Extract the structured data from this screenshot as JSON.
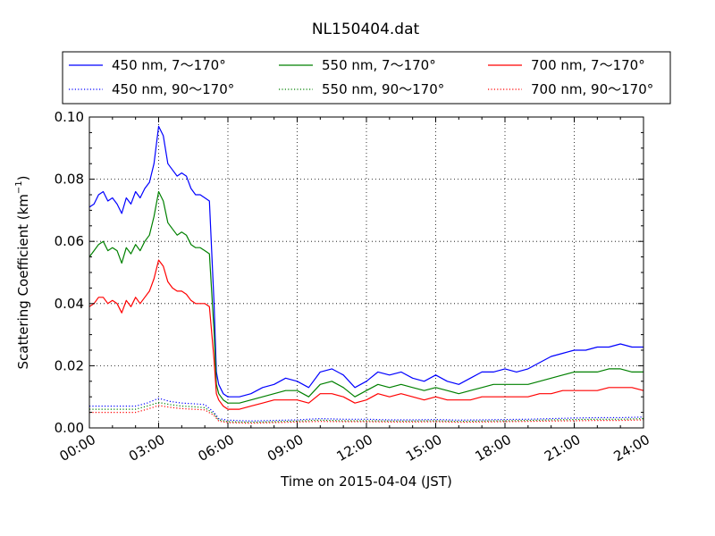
{
  "chart_data": {
    "type": "line",
    "title": "NL150404.dat",
    "xlabel": "Time on 2015-04-04 (JST)",
    "ylabel": "Scattering Coefficient (km",
    "ylabel_sup": "−1",
    "ylabel_close": ")",
    "xlim": [
      0,
      24
    ],
    "ylim": [
      0,
      0.1
    ],
    "grid": true,
    "legend_position": "top",
    "x_ticks": [
      {
        "value": 0,
        "label": "00:00"
      },
      {
        "value": 3,
        "label": "03:00"
      },
      {
        "value": 6,
        "label": "06:00"
      },
      {
        "value": 9,
        "label": "09:00"
      },
      {
        "value": 12,
        "label": "12:00"
      },
      {
        "value": 15,
        "label": "15:00"
      },
      {
        "value": 18,
        "label": "18:00"
      },
      {
        "value": 21,
        "label": "21:00"
      },
      {
        "value": 24,
        "label": "24:00"
      }
    ],
    "y_ticks": [
      {
        "value": 0,
        "label": "0.00"
      },
      {
        "value": 0.02,
        "label": "0.02"
      },
      {
        "value": 0.04,
        "label": "0.04"
      },
      {
        "value": 0.06,
        "label": "0.06"
      },
      {
        "value": 0.08,
        "label": "0.08"
      },
      {
        "value": 0.1,
        "label": "0.10"
      }
    ],
    "series": [
      {
        "name": "450 nm, 7～170°",
        "color": "#0000ff",
        "dash": "solid",
        "x": [
          0,
          0.2,
          0.4,
          0.6,
          0.8,
          1.0,
          1.2,
          1.4,
          1.6,
          1.8,
          2.0,
          2.2,
          2.4,
          2.6,
          2.8,
          3.0,
          3.2,
          3.4,
          3.6,
          3.8,
          4.0,
          4.2,
          4.4,
          4.6,
          4.8,
          5.0,
          5.2,
          5.4,
          5.5,
          5.6,
          5.8,
          6.0,
          6.5,
          7.0,
          7.5,
          8.0,
          8.5,
          9.0,
          9.5,
          10.0,
          10.5,
          11.0,
          11.5,
          12.0,
          12.5,
          13.0,
          13.5,
          14.0,
          14.5,
          15.0,
          15.5,
          16.0,
          16.5,
          17.0,
          17.5,
          18.0,
          18.5,
          19.0,
          19.5,
          20.0,
          20.5,
          21.0,
          21.5,
          22.0,
          22.5,
          23.0,
          23.5,
          24.0
        ],
        "y": [
          0.071,
          0.072,
          0.075,
          0.076,
          0.073,
          0.074,
          0.072,
          0.069,
          0.074,
          0.072,
          0.076,
          0.074,
          0.077,
          0.079,
          0.085,
          0.097,
          0.094,
          0.085,
          0.083,
          0.081,
          0.082,
          0.081,
          0.077,
          0.075,
          0.075,
          0.074,
          0.073,
          0.04,
          0.018,
          0.014,
          0.011,
          0.01,
          0.01,
          0.011,
          0.013,
          0.014,
          0.016,
          0.015,
          0.013,
          0.018,
          0.019,
          0.017,
          0.013,
          0.015,
          0.018,
          0.017,
          0.018,
          0.016,
          0.015,
          0.017,
          0.015,
          0.014,
          0.016,
          0.018,
          0.018,
          0.019,
          0.018,
          0.019,
          0.021,
          0.023,
          0.024,
          0.025,
          0.025,
          0.026,
          0.026,
          0.027,
          0.026,
          0.026
        ]
      },
      {
        "name": "550 nm, 7～170°",
        "color": "#008000",
        "dash": "solid",
        "x": [
          0,
          0.2,
          0.4,
          0.6,
          0.8,
          1.0,
          1.2,
          1.4,
          1.6,
          1.8,
          2.0,
          2.2,
          2.4,
          2.6,
          2.8,
          3.0,
          3.2,
          3.4,
          3.6,
          3.8,
          4.0,
          4.2,
          4.4,
          4.6,
          4.8,
          5.0,
          5.2,
          5.4,
          5.5,
          5.6,
          5.8,
          6.0,
          6.5,
          7.0,
          7.5,
          8.0,
          8.5,
          9.0,
          9.5,
          10.0,
          10.5,
          11.0,
          11.5,
          12.0,
          12.5,
          13.0,
          13.5,
          14.0,
          14.5,
          15.0,
          15.5,
          16.0,
          16.5,
          17.0,
          17.5,
          18.0,
          18.5,
          19.0,
          19.5,
          20.0,
          20.5,
          21.0,
          21.5,
          22.0,
          22.5,
          23.0,
          23.5,
          24.0
        ],
        "y": [
          0.055,
          0.057,
          0.059,
          0.06,
          0.057,
          0.058,
          0.057,
          0.053,
          0.058,
          0.056,
          0.059,
          0.057,
          0.06,
          0.062,
          0.068,
          0.076,
          0.073,
          0.066,
          0.064,
          0.062,
          0.063,
          0.062,
          0.059,
          0.058,
          0.058,
          0.057,
          0.056,
          0.031,
          0.014,
          0.011,
          0.009,
          0.008,
          0.008,
          0.009,
          0.01,
          0.011,
          0.012,
          0.012,
          0.01,
          0.014,
          0.015,
          0.013,
          0.01,
          0.012,
          0.014,
          0.013,
          0.014,
          0.013,
          0.012,
          0.013,
          0.012,
          0.011,
          0.012,
          0.013,
          0.014,
          0.014,
          0.014,
          0.014,
          0.015,
          0.016,
          0.017,
          0.018,
          0.018,
          0.018,
          0.019,
          0.019,
          0.018,
          0.018
        ]
      },
      {
        "name": "700 nm, 7～170°",
        "color": "#ff0000",
        "dash": "solid",
        "x": [
          0,
          0.2,
          0.4,
          0.6,
          0.8,
          1.0,
          1.2,
          1.4,
          1.6,
          1.8,
          2.0,
          2.2,
          2.4,
          2.6,
          2.8,
          3.0,
          3.2,
          3.4,
          3.6,
          3.8,
          4.0,
          4.2,
          4.4,
          4.6,
          4.8,
          5.0,
          5.2,
          5.4,
          5.5,
          5.6,
          5.8,
          6.0,
          6.5,
          7.0,
          7.5,
          8.0,
          8.5,
          9.0,
          9.5,
          10.0,
          10.5,
          11.0,
          11.5,
          12.0,
          12.5,
          13.0,
          13.5,
          14.0,
          14.5,
          15.0,
          15.5,
          16.0,
          16.5,
          17.0,
          17.5,
          18.0,
          18.5,
          19.0,
          19.5,
          20.0,
          20.5,
          21.0,
          21.5,
          22.0,
          22.5,
          23.0,
          23.5,
          24.0
        ],
        "y": [
          0.039,
          0.04,
          0.042,
          0.042,
          0.04,
          0.041,
          0.04,
          0.037,
          0.041,
          0.039,
          0.042,
          0.04,
          0.042,
          0.044,
          0.048,
          0.054,
          0.052,
          0.047,
          0.045,
          0.044,
          0.044,
          0.043,
          0.041,
          0.04,
          0.04,
          0.04,
          0.039,
          0.022,
          0.011,
          0.009,
          0.007,
          0.006,
          0.006,
          0.007,
          0.008,
          0.009,
          0.009,
          0.009,
          0.008,
          0.011,
          0.011,
          0.01,
          0.008,
          0.009,
          0.011,
          0.01,
          0.011,
          0.01,
          0.009,
          0.01,
          0.009,
          0.009,
          0.009,
          0.01,
          0.01,
          0.01,
          0.01,
          0.01,
          0.011,
          0.011,
          0.012,
          0.012,
          0.012,
          0.012,
          0.013,
          0.013,
          0.013,
          0.012
        ]
      },
      {
        "name": "450 nm, 90～170°",
        "color": "#0000ff",
        "dash": "dotted",
        "x": [
          0,
          0.5,
          1.0,
          1.5,
          2.0,
          2.5,
          3.0,
          3.5,
          4.0,
          4.5,
          5.0,
          5.4,
          5.6,
          6.0,
          7.0,
          8.0,
          9.0,
          10.0,
          11.0,
          12.0,
          13.0,
          14.0,
          15.0,
          16.0,
          17.0,
          18.0,
          19.0,
          20.0,
          21.0,
          22.0,
          23.0,
          24.0
        ],
        "y": [
          0.007,
          0.007,
          0.007,
          0.007,
          0.007,
          0.008,
          0.0095,
          0.0085,
          0.008,
          0.0078,
          0.0075,
          0.005,
          0.003,
          0.0025,
          0.0022,
          0.0024,
          0.0026,
          0.003,
          0.0028,
          0.0028,
          0.0026,
          0.0026,
          0.0027,
          0.0025,
          0.0026,
          0.0027,
          0.0028,
          0.003,
          0.0032,
          0.0033,
          0.0033,
          0.0035
        ]
      },
      {
        "name": "550 nm, 90～170°",
        "color": "#008000",
        "dash": "dotted",
        "x": [
          0,
          0.5,
          1.0,
          1.5,
          2.0,
          2.5,
          3.0,
          3.5,
          4.0,
          4.5,
          5.0,
          5.4,
          5.6,
          6.0,
          7.0,
          8.0,
          9.0,
          10.0,
          11.0,
          12.0,
          13.0,
          14.0,
          15.0,
          16.0,
          17.0,
          18.0,
          19.0,
          20.0,
          21.0,
          22.0,
          23.0,
          24.0
        ],
        "y": [
          0.006,
          0.006,
          0.006,
          0.006,
          0.006,
          0.007,
          0.0082,
          0.0075,
          0.007,
          0.0068,
          0.0065,
          0.0045,
          0.0026,
          0.002,
          0.0018,
          0.002,
          0.0022,
          0.0025,
          0.0023,
          0.0023,
          0.0022,
          0.0022,
          0.0023,
          0.0021,
          0.0022,
          0.0023,
          0.0024,
          0.0026,
          0.0027,
          0.0028,
          0.0028,
          0.003
        ]
      },
      {
        "name": "700 nm, 90～170°",
        "color": "#ff0000",
        "dash": "dotted",
        "x": [
          0,
          0.5,
          1.0,
          1.5,
          2.0,
          2.5,
          3.0,
          3.5,
          4.0,
          4.5,
          5.0,
          5.4,
          5.6,
          6.0,
          7.0,
          8.0,
          9.0,
          10.0,
          11.0,
          12.0,
          13.0,
          14.0,
          15.0,
          16.0,
          17.0,
          18.0,
          19.0,
          20.0,
          21.0,
          22.0,
          23.0,
          24.0
        ],
        "y": [
          0.005,
          0.005,
          0.005,
          0.005,
          0.005,
          0.006,
          0.0072,
          0.0066,
          0.0062,
          0.006,
          0.0058,
          0.004,
          0.0022,
          0.0017,
          0.0015,
          0.0017,
          0.0019,
          0.0021,
          0.002,
          0.002,
          0.0019,
          0.0019,
          0.002,
          0.0018,
          0.0019,
          0.002,
          0.0021,
          0.0022,
          0.0023,
          0.0024,
          0.0024,
          0.0026
        ]
      }
    ]
  }
}
